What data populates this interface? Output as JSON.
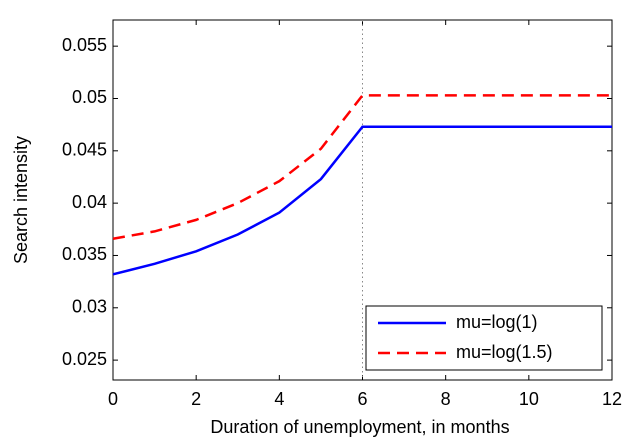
{
  "chart_data": {
    "type": "line",
    "x_label": "Duration of unemployment, in months",
    "y_label": "Search intensity",
    "x": [
      0,
      1,
      2,
      3,
      4,
      5,
      6,
      7,
      8,
      9,
      10,
      11,
      12
    ],
    "series": [
      {
        "name": "mu=log(1)",
        "color": "#0000ff",
        "dash": "solid",
        "values": [
          0.0332,
          0.0342,
          0.0354,
          0.037,
          0.0391,
          0.0423,
          0.0473,
          0.0473,
          0.0473,
          0.0473,
          0.0473,
          0.0473,
          0.0473
        ]
      },
      {
        "name": "mu=log(1.5)",
        "color": "#ff0000",
        "dash": "dashed",
        "values": [
          0.0366,
          0.0373,
          0.0384,
          0.04,
          0.0421,
          0.0452,
          0.0503,
          0.0503,
          0.0503,
          0.0503,
          0.0503,
          0.0503,
          0.0503
        ]
      }
    ],
    "vline": 6,
    "xlim": [
      0,
      12
    ],
    "xticks": [
      0,
      2,
      4,
      6,
      8,
      10,
      12
    ],
    "ylim": [
      0.0231,
      0.0575
    ],
    "yticks": [
      0.025,
      0.03,
      0.035,
      0.04,
      0.045,
      0.05,
      0.055
    ],
    "legend": "bottom-right"
  }
}
